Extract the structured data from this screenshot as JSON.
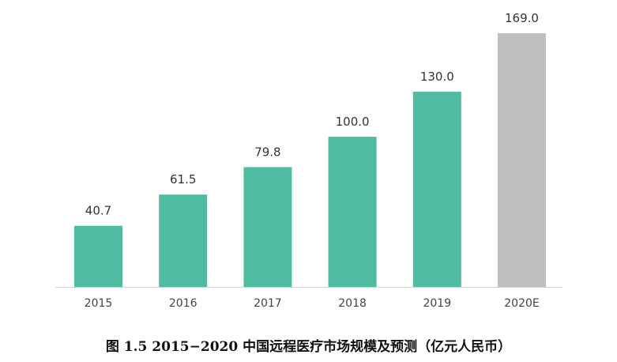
{
  "chart_data": {
    "type": "bar",
    "categories": [
      "2015",
      "2016",
      "2017",
      "2018",
      "2019",
      "2020E"
    ],
    "values": [
      40.7,
      61.5,
      79.8,
      100.0,
      130.0,
      169.0
    ],
    "value_labels": [
      "40.7",
      "61.5",
      "79.8",
      "100.0",
      "130.0",
      "169.0"
    ],
    "forecast": [
      false,
      false,
      false,
      false,
      false,
      true
    ],
    "colors": {
      "actual": "#4fbba0",
      "forecast": "#bfbfbf",
      "axis": "#d0d0d0"
    },
    "title": "图 1.5 2015−2020 中国远程医疗市场规模及预测（亿元人民币）",
    "xlabel": "",
    "ylabel": "",
    "ylim": [
      0,
      169
    ],
    "grid": false,
    "legend": "none"
  }
}
